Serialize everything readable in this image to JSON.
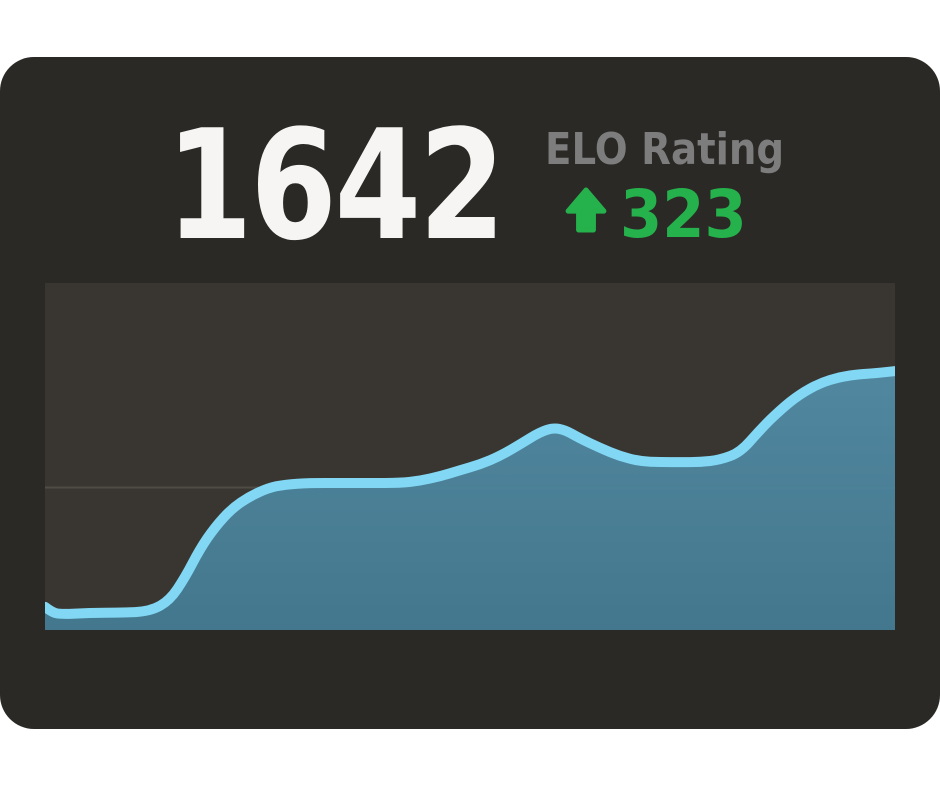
{
  "card": {
    "rating_value": "1642",
    "rating_label": "ELO Rating",
    "change_value": "323",
    "change_direction": "up",
    "change_icon": "arrow-up-icon"
  },
  "colors": {
    "page_bg": "#ffffff",
    "card_bg": "#2b2926",
    "panel_bg": "#393632",
    "gridline": "#4f4b45",
    "line": "#82d8f4",
    "fill_top": "#538ea8",
    "fill_bottom": "#447c94",
    "value_text": "#f6f5f3",
    "label_text": "#7d7d7d",
    "accent_green": "#25b14b"
  },
  "chart_data": {
    "type": "area",
    "title": "",
    "xlabel": "",
    "ylabel": "",
    "x_axis_labels": [],
    "y_axis_labels": [],
    "ylim": [
      1295,
      1760
    ],
    "gridlines_y": [
      1486
    ],
    "grid": "single-horizontal-line",
    "legend": false,
    "line_width": 10,
    "series": [
      {
        "name": "ELO",
        "points": [
          [
            0.0,
            1326
          ],
          [
            0.008,
            1319
          ],
          [
            0.018,
            1316
          ],
          [
            0.053,
            1318
          ],
          [
            0.088,
            1318
          ],
          [
            0.124,
            1320
          ],
          [
            0.147,
            1335
          ],
          [
            0.165,
            1366
          ],
          [
            0.182,
            1403
          ],
          [
            0.2,
            1433
          ],
          [
            0.22,
            1458
          ],
          [
            0.241,
            1474
          ],
          [
            0.262,
            1485
          ],
          [
            0.282,
            1490
          ],
          [
            0.312,
            1492
          ],
          [
            0.347,
            1492
          ],
          [
            0.382,
            1492
          ],
          [
            0.418,
            1492
          ],
          [
            0.441,
            1495
          ],
          [
            0.465,
            1501
          ],
          [
            0.488,
            1509
          ],
          [
            0.512,
            1517
          ],
          [
            0.535,
            1528
          ],
          [
            0.559,
            1544
          ],
          [
            0.582,
            1560
          ],
          [
            0.598,
            1566
          ],
          [
            0.612,
            1563
          ],
          [
            0.629,
            1552
          ],
          [
            0.653,
            1539
          ],
          [
            0.676,
            1528
          ],
          [
            0.7,
            1521
          ],
          [
            0.724,
            1520
          ],
          [
            0.747,
            1520
          ],
          [
            0.771,
            1520
          ],
          [
            0.794,
            1523
          ],
          [
            0.818,
            1533
          ],
          [
            0.841,
            1563
          ],
          [
            0.865,
            1590
          ],
          [
            0.888,
            1611
          ],
          [
            0.912,
            1626
          ],
          [
            0.935,
            1634
          ],
          [
            0.959,
            1638
          ],
          [
            0.976,
            1639
          ],
          [
            1.0,
            1642
          ]
        ]
      }
    ]
  }
}
